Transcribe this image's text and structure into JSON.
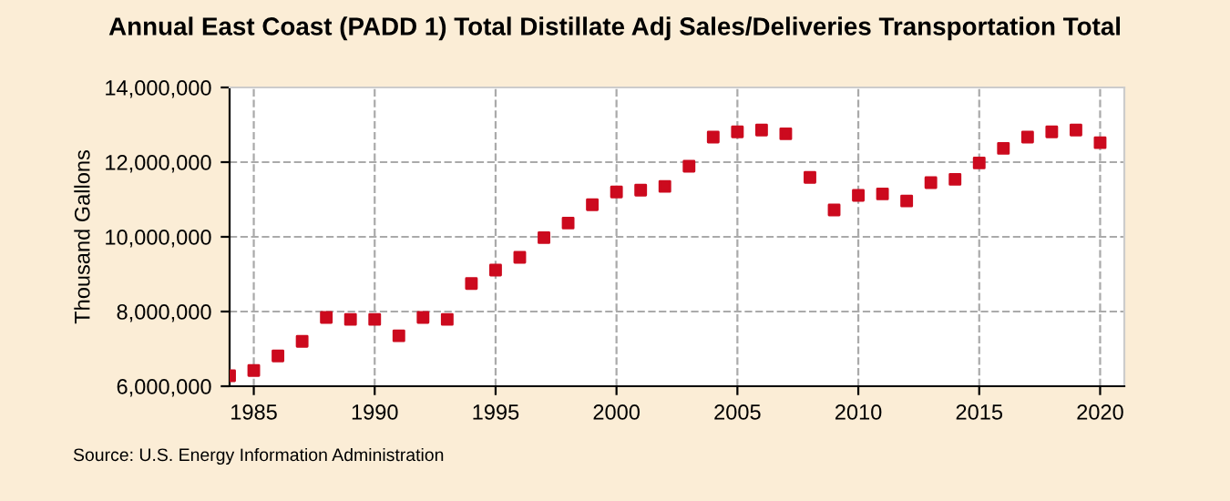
{
  "chart_data": {
    "type": "scatter",
    "title": "Annual East Coast (PADD 1) Total Distillate Adj Sales/Deliveries Transportation Total",
    "ylabel": "Thousand Gallons",
    "x": [
      1984,
      1985,
      1986,
      1987,
      1988,
      1989,
      1990,
      1991,
      1992,
      1993,
      1994,
      1995,
      1996,
      1997,
      1998,
      1999,
      2000,
      2001,
      2002,
      2003,
      2004,
      2005,
      2006,
      2007,
      2008,
      2009,
      2010,
      2011,
      2012,
      2013,
      2014,
      2015,
      2016,
      2017,
      2018,
      2019,
      2020
    ],
    "series": [
      {
        "color": "#cc0a1e",
        "values": [
          6280000,
          6420000,
          6810000,
          7200000,
          7840000,
          7790000,
          7790000,
          7350000,
          7840000,
          7790000,
          8750000,
          9110000,
          9450000,
          9980000,
          10370000,
          10860000,
          11200000,
          11250000,
          11350000,
          11890000,
          12670000,
          12810000,
          12860000,
          12760000,
          11590000,
          10720000,
          11110000,
          11150000,
          10960000,
          11450000,
          11540000,
          11980000,
          12370000,
          12670000,
          12810000,
          12860000,
          12520000
        ]
      }
    ],
    "xlim": [
      1984,
      2021
    ],
    "xticks": [
      1985,
      1990,
      1995,
      2000,
      2005,
      2010,
      2015,
      2020
    ],
    "ylim": [
      6000000,
      14000000
    ],
    "yticks": [
      {
        "value": 6000000,
        "label": "6,000,000"
      },
      {
        "value": 8000000,
        "label": "8,000,000"
      },
      {
        "value": 10000000,
        "label": "10,000,000"
      },
      {
        "value": 12000000,
        "label": "12,000,000"
      },
      {
        "value": 14000000,
        "label": "14,000,000"
      }
    ],
    "grid": true,
    "marker": "square",
    "annotations": [
      "Source: U.S. Energy Information Administration"
    ]
  }
}
